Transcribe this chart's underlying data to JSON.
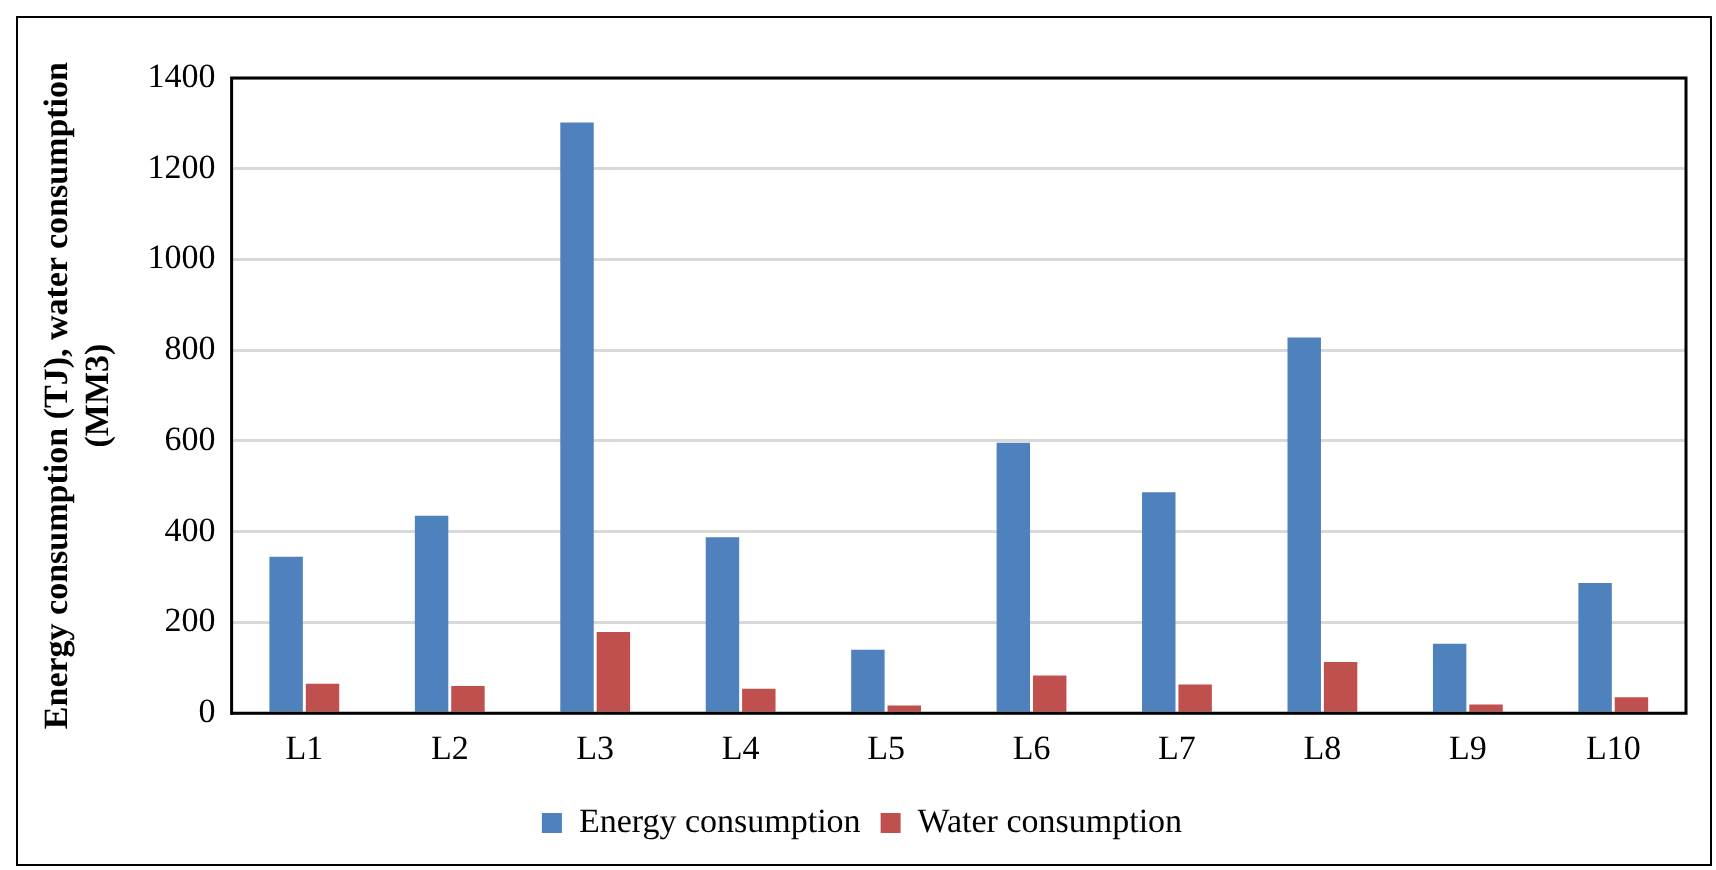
{
  "chart_data": {
    "type": "bar",
    "ylabel": "Energy consumption (TJ), water consumption (MM3)",
    "categories": [
      "L1",
      "L2",
      "L3",
      "L4",
      "L5",
      "L6",
      "L7",
      "L8",
      "L9",
      "L10"
    ],
    "series": [
      {
        "name": "Energy consumption",
        "color": "#4f81bd",
        "values": [
          345,
          435,
          1302,
          388,
          140,
          596,
          487,
          828,
          153,
          287
        ]
      },
      {
        "name": "Water consumption",
        "color": "#c0504d",
        "values": [
          65,
          60,
          179,
          54,
          17,
          83,
          63,
          113,
          19,
          35
        ]
      }
    ],
    "ylim": [
      0,
      1400
    ],
    "yticks": [
      0,
      200,
      400,
      600,
      800,
      1000,
      1200,
      1400
    ],
    "grid": "y",
    "legend": "bottom"
  }
}
